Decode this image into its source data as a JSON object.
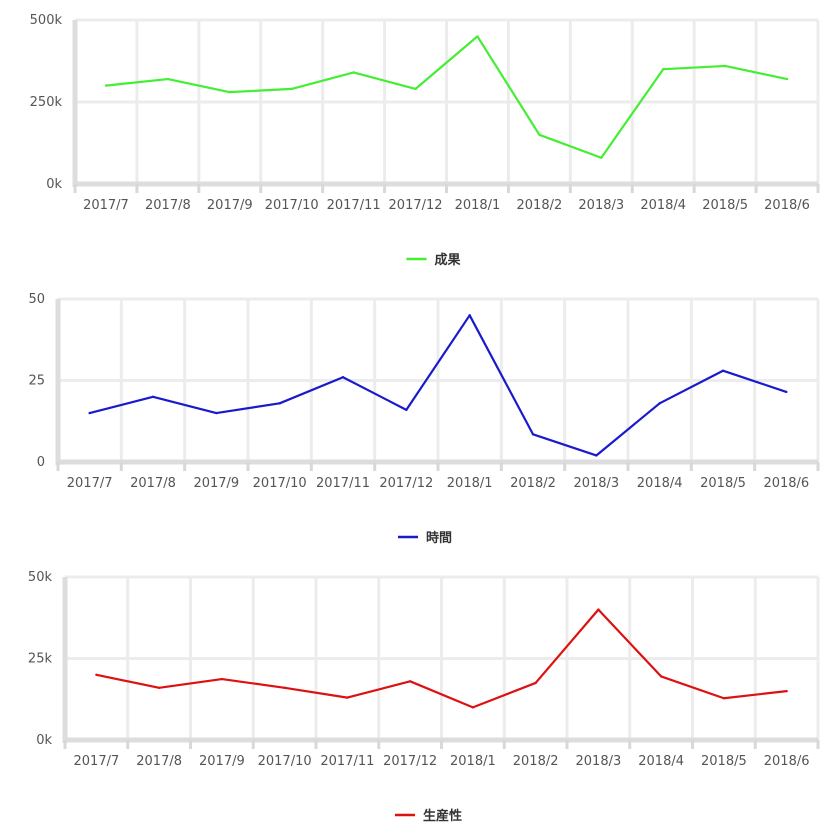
{
  "chart_data": [
    {
      "type": "line",
      "categories": [
        "2017/7",
        "2017/8",
        "2017/9",
        "2017/10",
        "2017/11",
        "2017/12",
        "2018/1",
        "2018/2",
        "2018/3",
        "2018/4",
        "2018/5",
        "2018/6"
      ],
      "series": [
        {
          "name": "成果",
          "color": "#44ee33",
          "values": [
            300000,
            320000,
            280000,
            290000,
            340000,
            290000,
            450000,
            150000,
            80000,
            350000,
            360000,
            320000
          ]
        }
      ],
      "ylim": [
        0,
        500000
      ],
      "yticks": [
        0,
        250000,
        500000
      ],
      "ytick_labels": [
        "0k",
        "250k",
        "500k"
      ],
      "grid": true,
      "legend_position": "bottom-center"
    },
    {
      "type": "line",
      "categories": [
        "2017/7",
        "2017/8",
        "2017/9",
        "2017/10",
        "2017/11",
        "2017/12",
        "2018/1",
        "2018/2",
        "2018/3",
        "2018/4",
        "2018/5",
        "2018/6"
      ],
      "series": [
        {
          "name": "時間",
          "color": "#1a1acc",
          "values": [
            15,
            20,
            15,
            18,
            26,
            16,
            45,
            8.5,
            2,
            18,
            28,
            21.5
          ]
        }
      ],
      "ylim": [
        0,
        50
      ],
      "yticks": [
        0,
        25,
        50
      ],
      "ytick_labels": [
        "0",
        "25",
        "50"
      ],
      "grid": true,
      "legend_position": "bottom-center"
    },
    {
      "type": "line",
      "categories": [
        "2017/7",
        "2017/8",
        "2017/9",
        "2017/10",
        "2017/11",
        "2017/12",
        "2018/1",
        "2018/2",
        "2018/3",
        "2018/4",
        "2018/5",
        "2018/6"
      ],
      "series": [
        {
          "name": "生産性",
          "color": "#dd1111",
          "values": [
            20000,
            16000,
            18700,
            16000,
            13000,
            18000,
            10000,
            17500,
            40000,
            19500,
            12800,
            15000
          ]
        }
      ],
      "ylim": [
        0,
        50000
      ],
      "yticks": [
        0,
        25000,
        50000
      ],
      "ytick_labels": [
        "0k",
        "25k",
        "50k"
      ],
      "grid": true,
      "legend_position": "bottom-center"
    }
  ]
}
